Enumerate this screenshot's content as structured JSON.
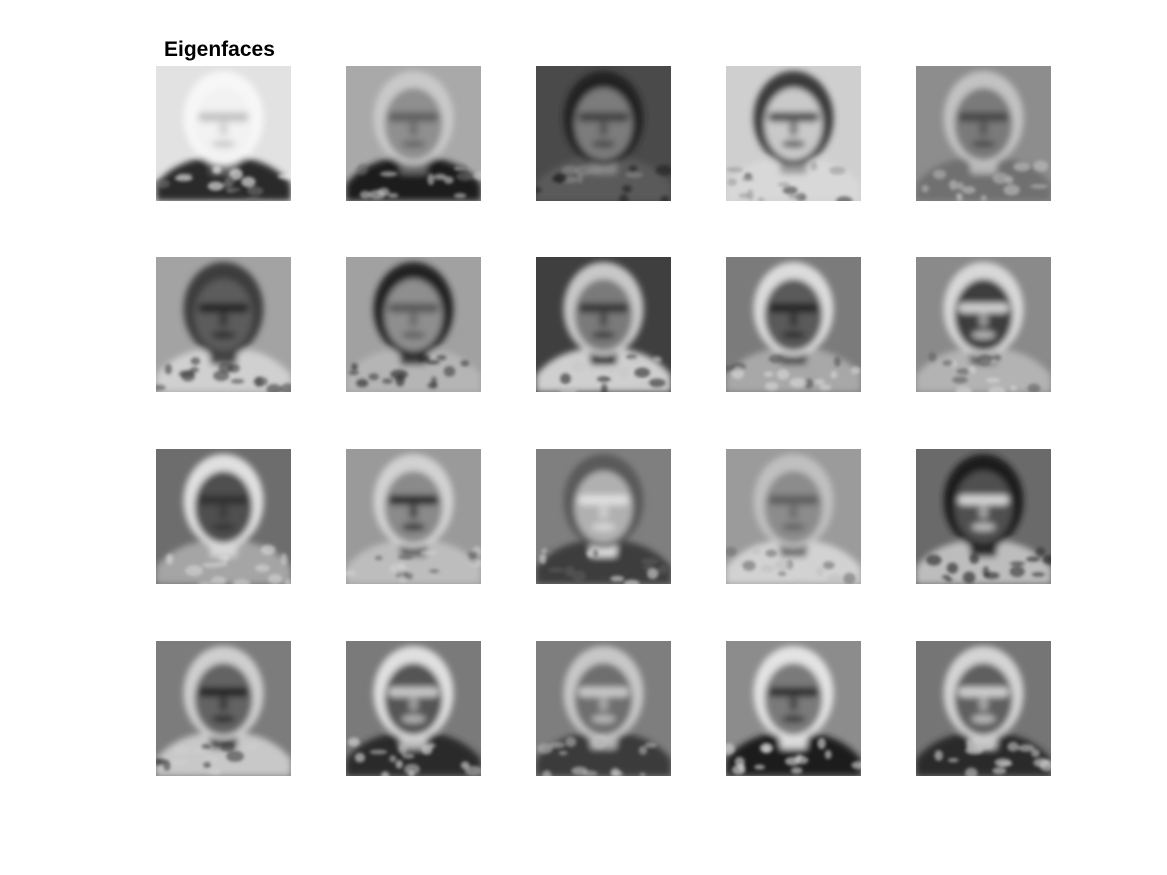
{
  "figure": {
    "title": "Eigenfaces"
  },
  "eigenfaces": {
    "rows": 4,
    "cols": 5,
    "tiles": [
      {
        "index": 1,
        "bg": "#e2e2e2",
        "face": "#f2f2f2",
        "hair": "#f7f7f7",
        "features": "#bdbdbd",
        "shoulders": "#2b2b2b",
        "collar": "#6f6f6f"
      },
      {
        "index": 2,
        "bg": "#a9a9a9",
        "face": "#8f8f8f",
        "hair": "#c9c9c9",
        "features": "#5a5a5a",
        "shoulders": "#1e1e1e",
        "collar": "#6a6a6a"
      },
      {
        "index": 3,
        "bg": "#4a4a4a",
        "face": "#7c7c7c",
        "hair": "#222222",
        "features": "#3b3b3b",
        "shoulders": "#5a5a5a",
        "collar": "#8a8a8a"
      },
      {
        "index": 4,
        "bg": "#cfcfcf",
        "face": "#c9c9c9",
        "hair": "#3a3a3a",
        "features": "#3f3f3f",
        "shoulders": "#d8d8d8",
        "collar": "#9a9a9a"
      },
      {
        "index": 5,
        "bg": "#8d8d8d",
        "face": "#7a7a7a",
        "hair": "#c2c2c2",
        "features": "#3f3f3f",
        "shoulders": "#6f6f6f",
        "collar": "#b7b7b7"
      },
      {
        "index": 6,
        "bg": "#a3a3a3",
        "face": "#5b5b5b",
        "hair": "#3d3d3d",
        "features": "#202020",
        "shoulders": "#d0d0d0",
        "collar": "#4a4a4a"
      },
      {
        "index": 7,
        "bg": "#a1a1a1",
        "face": "#8e8e8e",
        "hair": "#202020",
        "features": "#535353",
        "shoulders": "#b5b5b5",
        "collar": "#3a3a3a"
      },
      {
        "index": 8,
        "bg": "#3f3f3f",
        "face": "#7a7a7a",
        "hair": "#c8c8c8",
        "features": "#2c2c2c",
        "shoulders": "#cfcfcf",
        "collar": "#262626"
      },
      {
        "index": 9,
        "bg": "#7b7b7b",
        "face": "#5a5a5a",
        "hair": "#dcdcdc",
        "features": "#202020",
        "shoulders": "#a8a8a8",
        "collar": "#4f4f4f"
      },
      {
        "index": 10,
        "bg": "#8a8a8a",
        "face": "#3c3c3c",
        "hair": "#d8d8d8",
        "features": "#e6e6e6",
        "shoulders": "#b3b3b3",
        "collar": "#5a5a5a"
      },
      {
        "index": 11,
        "bg": "#6d6d6d",
        "face": "#505050",
        "hair": "#e0e0e0",
        "features": "#2c2c2c",
        "shoulders": "#a5a5a5",
        "collar": "#d6d6d6"
      },
      {
        "index": 12,
        "bg": "#9a9a9a",
        "face": "#8a8a8a",
        "hair": "#d2d2d2",
        "features": "#1e1e1e",
        "shoulders": "#bdbdbd",
        "collar": "#5d5d5d"
      },
      {
        "index": 13,
        "bg": "#7f7f7f",
        "face": "#b0b0b0",
        "hair": "#5a5a5a",
        "features": "#e6e6e6",
        "shoulders": "#3e3e3e",
        "collar": "#dcdcdc"
      },
      {
        "index": 14,
        "bg": "#9b9b9b",
        "face": "#8c8c8c",
        "hair": "#c0c0c0",
        "features": "#585858",
        "shoulders": "#d2d2d2",
        "collar": "#6e6e6e"
      },
      {
        "index": 15,
        "bg": "#6a6a6a",
        "face": "#4f4f4f",
        "hair": "#1a1a1a",
        "features": "#e8e8e8",
        "shoulders": "#bdbdbd",
        "collar": "#2e2e2e"
      },
      {
        "index": 16,
        "bg": "#7c7c7c",
        "face": "#646464",
        "hair": "#cfcfcf",
        "features": "#1c1c1c",
        "shoulders": "#c8c8c8",
        "collar": "#3a3a3a"
      },
      {
        "index": 17,
        "bg": "#7a7a7a",
        "face": "#555555",
        "hair": "#e0e0e0",
        "features": "#d9d9d9",
        "shoulders": "#2a2a2a",
        "collar": "#bcbcbc"
      },
      {
        "index": 18,
        "bg": "#7e7e7e",
        "face": "#6e6e6e",
        "hair": "#c7c7c7",
        "features": "#d6d6d6",
        "shoulders": "#3a3a3a",
        "collar": "#b2b2b2"
      },
      {
        "index": 19,
        "bg": "#8c8c8c",
        "face": "#7a7a7a",
        "hair": "#e3e3e3",
        "features": "#262626",
        "shoulders": "#1e1e1e",
        "collar": "#d8d8d8"
      },
      {
        "index": 20,
        "bg": "#757575",
        "face": "#5e5e5e",
        "hair": "#d4d4d4",
        "features": "#e1e1e1",
        "shoulders": "#2a2a2a",
        "collar": "#c6c6c6"
      }
    ]
  }
}
